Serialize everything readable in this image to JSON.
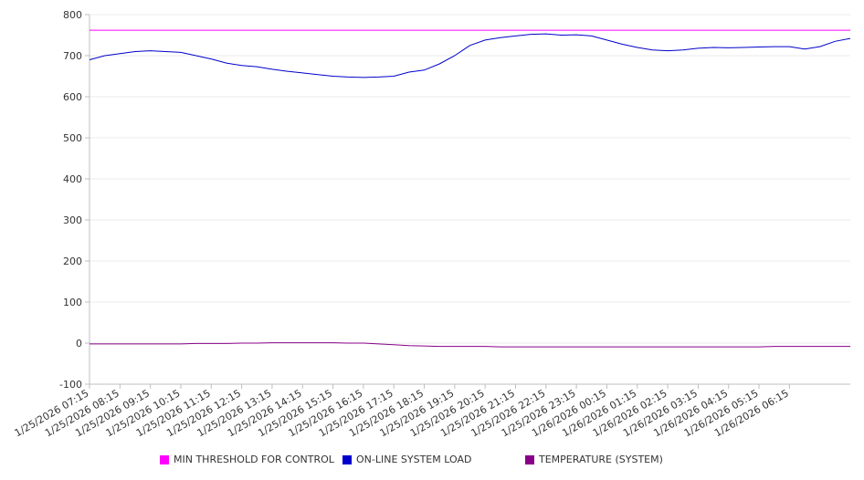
{
  "chart_data": {
    "type": "line",
    "title": "",
    "xlabel": "",
    "ylabel": "",
    "ylim": [
      -100,
      800
    ],
    "yticks": [
      -100,
      0,
      100,
      200,
      300,
      400,
      500,
      600,
      700,
      800
    ],
    "grid": true,
    "legend_position": "bottom",
    "x_tick_labels": [
      "1/25/2026 07:15",
      "1/25/2026 08:15",
      "1/25/2026 09:15",
      "1/25/2026 10:15",
      "1/25/2026 11:15",
      "1/25/2026 12:15",
      "1/25/2026 13:15",
      "1/25/2026 14:15",
      "1/25/2026 15:15",
      "1/25/2026 16:15",
      "1/25/2026 17:15",
      "1/25/2026 18:15",
      "1/25/2026 19:15",
      "1/25/2026 20:15",
      "1/25/2026 21:15",
      "1/25/2026 22:15",
      "1/25/2026 23:15",
      "1/26/2026 00:15",
      "1/26/2026 01:15",
      "1/26/2026 02:15",
      "1/26/2026 03:15",
      "1/26/2026 04:15",
      "1/26/2026 05:15",
      "1/26/2026 06:15"
    ],
    "x_hours": [
      0,
      0.5,
      1,
      1.5,
      2,
      2.5,
      3,
      3.5,
      4,
      4.5,
      5,
      5.5,
      6,
      6.5,
      7,
      7.5,
      8,
      8.5,
      9,
      9.5,
      10,
      10.5,
      11,
      11.5,
      12,
      12.5,
      13,
      13.5,
      14,
      14.5,
      15,
      15.5,
      16,
      16.5,
      17,
      17.5,
      18,
      18.5,
      19,
      19.5,
      20,
      20.5,
      21,
      21.5,
      22,
      22.5,
      23,
      23.5,
      24,
      24.5,
      25
    ],
    "series": [
      {
        "name": "MIN THRESHOLD FOR CONTROL",
        "color": "#ff00ff",
        "values": [
          762,
          762,
          762,
          762,
          762,
          762,
          762,
          762,
          762,
          762,
          762,
          762,
          762,
          762,
          762,
          762,
          762,
          762,
          762,
          762,
          762,
          762,
          762,
          762,
          762,
          762,
          762,
          762,
          762,
          762,
          762,
          762,
          762,
          762,
          762,
          762,
          762,
          762,
          762,
          762,
          762,
          762,
          762,
          762,
          762,
          762,
          762,
          762,
          762,
          762,
          762
        ]
      },
      {
        "name": "ON-LINE SYSTEM LOAD",
        "color": "#0000cc",
        "values": [
          690,
          700,
          705,
          710,
          712,
          710,
          708,
          700,
          692,
          682,
          676,
          673,
          667,
          662,
          658,
          654,
          650,
          648,
          647,
          648,
          650,
          660,
          665,
          680,
          700,
          725,
          738,
          744,
          748,
          752,
          753,
          750,
          751,
          748,
          738,
          728,
          720,
          714,
          712,
          714,
          718,
          720,
          719,
          720,
          721,
          722,
          722,
          716,
          722,
          735,
          742
        ]
      },
      {
        "name": "TEMPERATURE (SYSTEM)",
        "color": "#880088",
        "values": [
          -2,
          -2,
          -2,
          -2,
          -2,
          -2,
          -2,
          -1,
          -1,
          -1,
          0,
          0,
          1,
          1,
          1,
          1,
          1,
          0,
          0,
          -2,
          -4,
          -6,
          -7,
          -8,
          -8,
          -8,
          -8,
          -9,
          -9,
          -9,
          -9,
          -9,
          -9,
          -9,
          -9,
          -9,
          -9,
          -9,
          -9,
          -9,
          -9,
          -9,
          -9,
          -9,
          -9,
          -8,
          -8,
          -8,
          -8,
          -8,
          -8
        ]
      }
    ]
  }
}
